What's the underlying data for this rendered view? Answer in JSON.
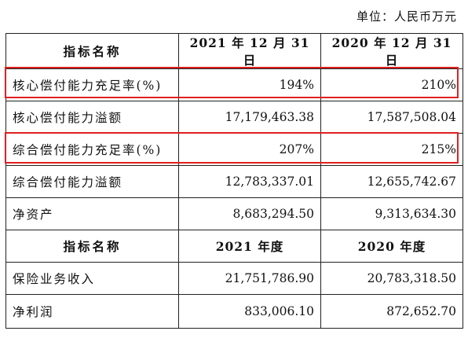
{
  "unit_label": "单位：人民币万元",
  "header1": {
    "name": "指标名称",
    "col1": "2021 年 12 月 31 日",
    "col2": "2020 年 12 月 31 日"
  },
  "rows1": [
    {
      "name": "核心偿付能力充足率(%)",
      "v1": "194%",
      "v2": "210%"
    },
    {
      "name": "核心偿付能力溢额",
      "v1": "17,179,463.38",
      "v2": "17,587,508.04"
    },
    {
      "name": "综合偿付能力充足率(%)",
      "v1": "207%",
      "v2": "215%"
    },
    {
      "name": "综合偿付能力溢额",
      "v1": "12,783,337.01",
      "v2": "12,655,742.67"
    },
    {
      "name": "净资产",
      "v1": "8,683,294.50",
      "v2": "9,313,634.30"
    }
  ],
  "header2": {
    "name": "指标名称",
    "col1": "2021 年度",
    "col2": "2020 年度"
  },
  "rows2": [
    {
      "name": "保险业务收入",
      "v1": "21,751,786.90",
      "v2": "20,783,318.50"
    },
    {
      "name": "净利润",
      "v1": "833,006.10",
      "v2": "872,652.70"
    }
  ],
  "highlight_color": "#e02020"
}
